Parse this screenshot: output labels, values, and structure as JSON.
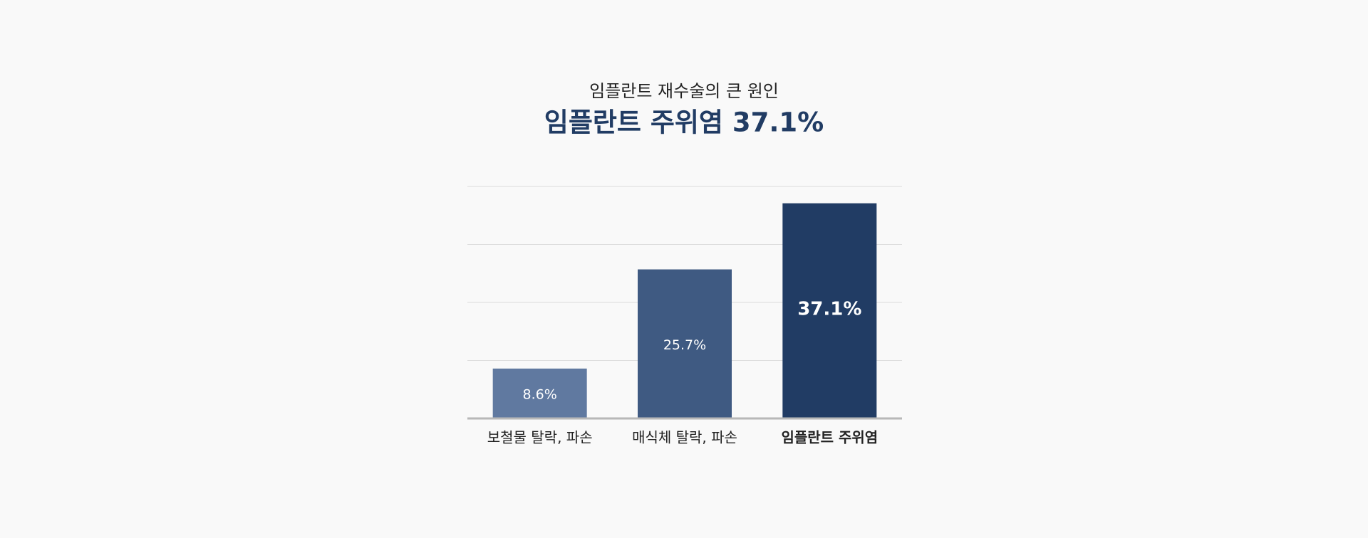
{
  "chart_data": {
    "type": "bar",
    "title": "임플란트 재수술의 큰 원인",
    "subtitle": "임플란트 주위염 37.1%",
    "categories": [
      "보철물 탈락, 파손",
      "매식체 탈락, 파손",
      "임플란트 주위염"
    ],
    "values": [
      8.6,
      25.7,
      37.1
    ],
    "value_labels": [
      "8.6%",
      "25.7%",
      "37.1%"
    ],
    "colors": [
      "#6079a0",
      "#3f5a82",
      "#213c64"
    ],
    "highlight": 2,
    "ylim": [
      0,
      40
    ],
    "yticks": [
      0,
      10,
      20,
      30,
      40
    ],
    "grid": true
  }
}
